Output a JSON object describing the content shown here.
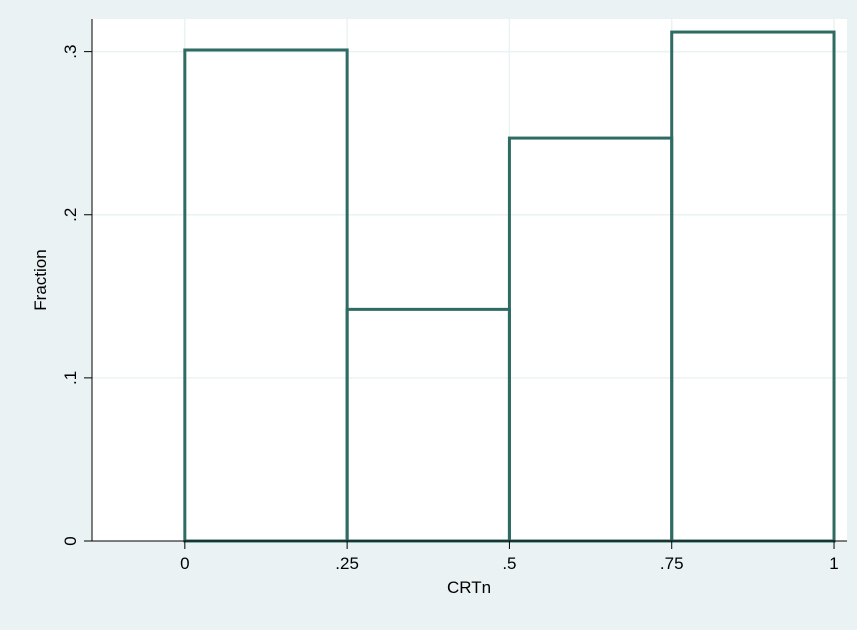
{
  "chart_data": {
    "type": "bar",
    "subtype": "histogram",
    "xlabel": "CRTn",
    "ylabel": "Fraction",
    "bins": [
      {
        "start": 0,
        "end": 0.25,
        "value": 0.301
      },
      {
        "start": 0.25,
        "end": 0.5,
        "value": 0.142
      },
      {
        "start": 0.5,
        "end": 0.75,
        "value": 0.247
      },
      {
        "start": 0.75,
        "end": 1,
        "value": 0.312
      }
    ],
    "xlim": [
      -0.143,
      1.02
    ],
    "ylim": [
      0,
      0.32
    ],
    "x_ticks": [
      {
        "value": 0,
        "label": "0"
      },
      {
        "value": 0.25,
        "label": ".25"
      },
      {
        "value": 0.5,
        "label": ".5"
      },
      {
        "value": 0.75,
        "label": ".75"
      },
      {
        "value": 1,
        "label": "1"
      }
    ],
    "y_ticks": [
      {
        "value": 0,
        "label": "0"
      },
      {
        "value": 0.1,
        "label": ".1"
      },
      {
        "value": 0.2,
        "label": ".2"
      },
      {
        "value": 0.3,
        "label": ".3"
      }
    ],
    "grid": true,
    "colors": {
      "background": "#eaf2f3",
      "plot_background": "#ffffff",
      "bar_outline": "#2e6b63",
      "grid": "#eaf2f3"
    }
  }
}
